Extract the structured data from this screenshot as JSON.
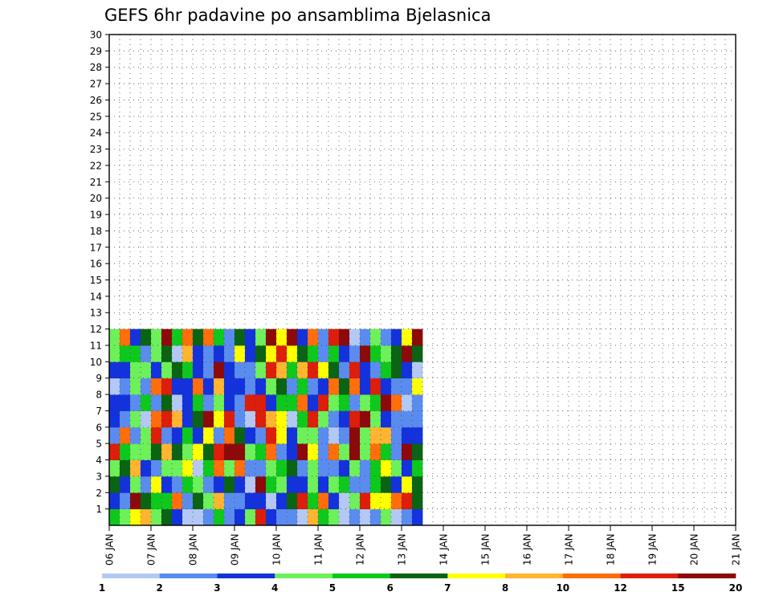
{
  "chart_data": {
    "type": "heatmap",
    "title": "GEFS 6hr padavine po ansamblima Bjelasnica",
    "xlabel": "",
    "ylabel": "",
    "x_ticks": [
      "06 JAN",
      "07 JAN",
      "08 JAN",
      "09 JAN",
      "10 JAN",
      "11 JAN",
      "12 JAN",
      "13 JAN",
      "14 JAN",
      "15 JAN",
      "16 JAN",
      "17 JAN",
      "18 JAN",
      "19 JAN",
      "20 JAN",
      "21 JAN"
    ],
    "y_ticks": [
      1,
      2,
      3,
      4,
      5,
      6,
      7,
      8,
      9,
      10,
      11,
      12,
      13,
      14,
      15,
      16,
      17,
      18,
      19,
      20,
      21,
      22,
      23,
      24,
      25,
      26,
      27,
      28,
      29,
      30
    ],
    "ylim": [
      0,
      30
    ],
    "time_steps_per_day": 4,
    "grid": "dotted",
    "colorbar": {
      "position": "bottom",
      "labels": [
        "1",
        "2",
        "3",
        "4",
        "5",
        "6",
        "7",
        "8",
        "10",
        "12",
        "15",
        "20"
      ],
      "colors": [
        "#b4c8f5",
        "#5a8cf0",
        "#1432dc",
        "#6ef05a",
        "#0fc81e",
        "#0a6414",
        "#ffff00",
        "#ffb432",
        "#ff6e0a",
        "#dc1e0a",
        "#8c0a0a"
      ]
    },
    "cells": [
      [
        0,
        0,
        4
      ],
      [
        1,
        0,
        3
      ],
      [
        2,
        0,
        6
      ],
      [
        3,
        0,
        7
      ],
      [
        4,
        0,
        3
      ],
      [
        5,
        0,
        5
      ],
      [
        6,
        0,
        2
      ],
      [
        7,
        0,
        0
      ],
      [
        8,
        0,
        0
      ],
      [
        9,
        0,
        1
      ],
      [
        10,
        0,
        4
      ],
      [
        11,
        0,
        1
      ],
      [
        12,
        0,
        2
      ],
      [
        13,
        0,
        3
      ],
      [
        14,
        0,
        9
      ],
      [
        15,
        0,
        2
      ],
      [
        16,
        0,
        1
      ],
      [
        17,
        0,
        1
      ],
      [
        18,
        0,
        0
      ],
      [
        19,
        0,
        7
      ],
      [
        20,
        0,
        4
      ],
      [
        21,
        0,
        3
      ],
      [
        22,
        0,
        0
      ],
      [
        23,
        0,
        1
      ],
      [
        24,
        0,
        0
      ],
      [
        25,
        0,
        1
      ],
      [
        26,
        0,
        3
      ],
      [
        27,
        0,
        0
      ],
      [
        28,
        0,
        1
      ],
      [
        29,
        0,
        2
      ],
      [
        0,
        1,
        2
      ],
      [
        1,
        1,
        1
      ],
      [
        2,
        1,
        10
      ],
      [
        3,
        1,
        5
      ],
      [
        4,
        1,
        4
      ],
      [
        5,
        1,
        4
      ],
      [
        6,
        1,
        8
      ],
      [
        7,
        1,
        1
      ],
      [
        8,
        1,
        5
      ],
      [
        9,
        1,
        3
      ],
      [
        10,
        1,
        7
      ],
      [
        11,
        1,
        1
      ],
      [
        12,
        1,
        1
      ],
      [
        13,
        1,
        2
      ],
      [
        14,
        1,
        2
      ],
      [
        15,
        1,
        0
      ],
      [
        16,
        1,
        2
      ],
      [
        17,
        1,
        5
      ],
      [
        18,
        1,
        9
      ],
      [
        19,
        1,
        4
      ],
      [
        20,
        1,
        8
      ],
      [
        21,
        1,
        2
      ],
      [
        22,
        1,
        0
      ],
      [
        23,
        1,
        3
      ],
      [
        24,
        1,
        9
      ],
      [
        25,
        1,
        6
      ],
      [
        26,
        1,
        6
      ],
      [
        27,
        1,
        8
      ],
      [
        28,
        1,
        9
      ],
      [
        29,
        1,
        5
      ],
      [
        0,
        2,
        5
      ],
      [
        1,
        2,
        2
      ],
      [
        2,
        2,
        3
      ],
      [
        3,
        2,
        1
      ],
      [
        4,
        2,
        6
      ],
      [
        5,
        2,
        2
      ],
      [
        6,
        2,
        1
      ],
      [
        7,
        2,
        4
      ],
      [
        8,
        2,
        3
      ],
      [
        9,
        2,
        1
      ],
      [
        10,
        2,
        2
      ],
      [
        11,
        2,
        5
      ],
      [
        12,
        2,
        2
      ],
      [
        13,
        2,
        0
      ],
      [
        14,
        2,
        10
      ],
      [
        15,
        2,
        4
      ],
      [
        16,
        2,
        3
      ],
      [
        17,
        2,
        2
      ],
      [
        18,
        2,
        2
      ],
      [
        19,
        2,
        3
      ],
      [
        20,
        2,
        2
      ],
      [
        21,
        2,
        3
      ],
      [
        22,
        2,
        4
      ],
      [
        23,
        2,
        1
      ],
      [
        24,
        2,
        1
      ],
      [
        25,
        2,
        4
      ],
      [
        26,
        2,
        5
      ],
      [
        27,
        2,
        2
      ],
      [
        28,
        2,
        6
      ],
      [
        29,
        2,
        5
      ],
      [
        0,
        3,
        3
      ],
      [
        1,
        3,
        5
      ],
      [
        2,
        3,
        7
      ],
      [
        3,
        3,
        2
      ],
      [
        4,
        3,
        1
      ],
      [
        5,
        3,
        3
      ],
      [
        6,
        3,
        3
      ],
      [
        7,
        3,
        6
      ],
      [
        8,
        3,
        0
      ],
      [
        9,
        3,
        4
      ],
      [
        10,
        3,
        8
      ],
      [
        11,
        3,
        3
      ],
      [
        12,
        3,
        8
      ],
      [
        13,
        3,
        1
      ],
      [
        14,
        3,
        1
      ],
      [
        15,
        3,
        3
      ],
      [
        16,
        3,
        4
      ],
      [
        17,
        3,
        5
      ],
      [
        18,
        3,
        1
      ],
      [
        19,
        3,
        3
      ],
      [
        20,
        3,
        1
      ],
      [
        21,
        3,
        1
      ],
      [
        22,
        3,
        2
      ],
      [
        23,
        3,
        3
      ],
      [
        24,
        3,
        1
      ],
      [
        25,
        3,
        4
      ],
      [
        26,
        3,
        6
      ],
      [
        27,
        3,
        3
      ],
      [
        28,
        3,
        2
      ],
      [
        29,
        3,
        4
      ],
      [
        0,
        4,
        9
      ],
      [
        1,
        4,
        4
      ],
      [
        2,
        4,
        3
      ],
      [
        3,
        4,
        3
      ],
      [
        4,
        4,
        5
      ],
      [
        5,
        4,
        7
      ],
      [
        6,
        4,
        5
      ],
      [
        7,
        4,
        3
      ],
      [
        8,
        4,
        6
      ],
      [
        9,
        4,
        5
      ],
      [
        10,
        4,
        9
      ],
      [
        11,
        4,
        10
      ],
      [
        12,
        4,
        10
      ],
      [
        13,
        4,
        3
      ],
      [
        14,
        4,
        4
      ],
      [
        15,
        4,
        8
      ],
      [
        16,
        4,
        1
      ],
      [
        17,
        4,
        2
      ],
      [
        18,
        4,
        10
      ],
      [
        19,
        4,
        6
      ],
      [
        20,
        4,
        1
      ],
      [
        21,
        4,
        8
      ],
      [
        22,
        4,
        3
      ],
      [
        23,
        4,
        10
      ],
      [
        24,
        4,
        3
      ],
      [
        25,
        4,
        8
      ],
      [
        26,
        4,
        4
      ],
      [
        27,
        4,
        1
      ],
      [
        28,
        4,
        10
      ],
      [
        29,
        4,
        5
      ],
      [
        0,
        5,
        1
      ],
      [
        1,
        5,
        8
      ],
      [
        2,
        5,
        1
      ],
      [
        3,
        5,
        3
      ],
      [
        4,
        5,
        9
      ],
      [
        5,
        5,
        1
      ],
      [
        6,
        5,
        2
      ],
      [
        7,
        5,
        4
      ],
      [
        8,
        5,
        2
      ],
      [
        9,
        5,
        6
      ],
      [
        10,
        5,
        1
      ],
      [
        11,
        5,
        8
      ],
      [
        12,
        5,
        5
      ],
      [
        13,
        5,
        2
      ],
      [
        14,
        5,
        1
      ],
      [
        15,
        5,
        9
      ],
      [
        16,
        5,
        6
      ],
      [
        17,
        5,
        2
      ],
      [
        18,
        5,
        3
      ],
      [
        19,
        5,
        3
      ],
      [
        20,
        5,
        1
      ],
      [
        21,
        5,
        0
      ],
      [
        22,
        5,
        1
      ],
      [
        23,
        5,
        10
      ],
      [
        24,
        5,
        3
      ],
      [
        25,
        5,
        7
      ],
      [
        26,
        5,
        7
      ],
      [
        27,
        5,
        1
      ],
      [
        28,
        5,
        2
      ],
      [
        29,
        5,
        2
      ],
      [
        0,
        6,
        2
      ],
      [
        1,
        6,
        1
      ],
      [
        2,
        6,
        3
      ],
      [
        3,
        6,
        0
      ],
      [
        4,
        6,
        8
      ],
      [
        5,
        6,
        9
      ],
      [
        6,
        6,
        7
      ],
      [
        7,
        6,
        2
      ],
      [
        8,
        6,
        5
      ],
      [
        9,
        6,
        10
      ],
      [
        10,
        6,
        6
      ],
      [
        11,
        6,
        9
      ],
      [
        12,
        6,
        1
      ],
      [
        13,
        6,
        0
      ],
      [
        14,
        6,
        9
      ],
      [
        15,
        6,
        7
      ],
      [
        16,
        6,
        6
      ],
      [
        17,
        6,
        0
      ],
      [
        18,
        6,
        4
      ],
      [
        19,
        6,
        9
      ],
      [
        20,
        6,
        3
      ],
      [
        21,
        6,
        1
      ],
      [
        22,
        6,
        2
      ],
      [
        23,
        6,
        9
      ],
      [
        24,
        6,
        10
      ],
      [
        25,
        6,
        3
      ],
      [
        26,
        6,
        2
      ],
      [
        27,
        6,
        1
      ],
      [
        28,
        6,
        1
      ],
      [
        29,
        6,
        1
      ],
      [
        0,
        7,
        2
      ],
      [
        1,
        7,
        2
      ],
      [
        2,
        7,
        1
      ],
      [
        3,
        7,
        4
      ],
      [
        4,
        7,
        1
      ],
      [
        5,
        7,
        5
      ],
      [
        6,
        7,
        0
      ],
      [
        7,
        7,
        2
      ],
      [
        8,
        7,
        4
      ],
      [
        9,
        7,
        1
      ],
      [
        10,
        7,
        3
      ],
      [
        11,
        7,
        2
      ],
      [
        12,
        7,
        1
      ],
      [
        13,
        7,
        9
      ],
      [
        14,
        7,
        9
      ],
      [
        15,
        7,
        2
      ],
      [
        16,
        7,
        4
      ],
      [
        17,
        7,
        4
      ],
      [
        18,
        7,
        8
      ],
      [
        19,
        7,
        2
      ],
      [
        20,
        7,
        9
      ],
      [
        21,
        7,
        3
      ],
      [
        22,
        7,
        4
      ],
      [
        23,
        7,
        1
      ],
      [
        24,
        7,
        3
      ],
      [
        25,
        7,
        4
      ],
      [
        26,
        7,
        10
      ],
      [
        27,
        7,
        8
      ],
      [
        28,
        7,
        0
      ],
      [
        29,
        7,
        1
      ],
      [
        0,
        8,
        0
      ],
      [
        1,
        8,
        1
      ],
      [
        2,
        8,
        3
      ],
      [
        3,
        8,
        1
      ],
      [
        4,
        8,
        8
      ],
      [
        5,
        8,
        9
      ],
      [
        6,
        8,
        2
      ],
      [
        7,
        8,
        2
      ],
      [
        8,
        8,
        8
      ],
      [
        9,
        8,
        2
      ],
      [
        10,
        8,
        7
      ],
      [
        11,
        8,
        2
      ],
      [
        12,
        8,
        2
      ],
      [
        13,
        8,
        1
      ],
      [
        14,
        8,
        2
      ],
      [
        15,
        8,
        3
      ],
      [
        16,
        8,
        5
      ],
      [
        17,
        8,
        1
      ],
      [
        18,
        8,
        4
      ],
      [
        19,
        8,
        1
      ],
      [
        20,
        8,
        2
      ],
      [
        21,
        8,
        8
      ],
      [
        22,
        8,
        5
      ],
      [
        23,
        8,
        8
      ],
      [
        24,
        8,
        2
      ],
      [
        25,
        8,
        9
      ],
      [
        26,
        8,
        2
      ],
      [
        27,
        8,
        1
      ],
      [
        28,
        8,
        1
      ],
      [
        29,
        8,
        6
      ],
      [
        0,
        9,
        2
      ],
      [
        1,
        9,
        2
      ],
      [
        2,
        9,
        3
      ],
      [
        3,
        9,
        3
      ],
      [
        4,
        9,
        2
      ],
      [
        5,
        9,
        3
      ],
      [
        6,
        9,
        5
      ],
      [
        7,
        9,
        4
      ],
      [
        8,
        9,
        2
      ],
      [
        9,
        9,
        1
      ],
      [
        10,
        9,
        10
      ],
      [
        11,
        9,
        2
      ],
      [
        12,
        9,
        1
      ],
      [
        13,
        9,
        1
      ],
      [
        14,
        9,
        3
      ],
      [
        15,
        9,
        9
      ],
      [
        16,
        9,
        7
      ],
      [
        17,
        9,
        4
      ],
      [
        18,
        9,
        7
      ],
      [
        19,
        9,
        9
      ],
      [
        20,
        9,
        6
      ],
      [
        21,
        9,
        5
      ],
      [
        22,
        9,
        1
      ],
      [
        23,
        9,
        9
      ],
      [
        24,
        9,
        2
      ],
      [
        25,
        9,
        1
      ],
      [
        26,
        9,
        4
      ],
      [
        27,
        9,
        5
      ],
      [
        28,
        9,
        2
      ],
      [
        29,
        9,
        0
      ],
      [
        0,
        10,
        3
      ],
      [
        1,
        10,
        4
      ],
      [
        2,
        10,
        4
      ],
      [
        3,
        10,
        1
      ],
      [
        4,
        10,
        3
      ],
      [
        5,
        10,
        5
      ],
      [
        6,
        10,
        0
      ],
      [
        7,
        10,
        7
      ],
      [
        8,
        10,
        2
      ],
      [
        9,
        10,
        1
      ],
      [
        10,
        10,
        2
      ],
      [
        11,
        10,
        1
      ],
      [
        12,
        10,
        6
      ],
      [
        13,
        10,
        2
      ],
      [
        14,
        10,
        5
      ],
      [
        15,
        10,
        6
      ],
      [
        16,
        10,
        9
      ],
      [
        17,
        10,
        6
      ],
      [
        18,
        10,
        5
      ],
      [
        19,
        10,
        4
      ],
      [
        20,
        10,
        1
      ],
      [
        21,
        10,
        4
      ],
      [
        22,
        10,
        2
      ],
      [
        23,
        10,
        1
      ],
      [
        24,
        10,
        10
      ],
      [
        25,
        10,
        4
      ],
      [
        26,
        10,
        3
      ],
      [
        27,
        10,
        5
      ],
      [
        28,
        10,
        10
      ],
      [
        29,
        10,
        5
      ],
      [
        0,
        11,
        3
      ],
      [
        1,
        11,
        8
      ],
      [
        2,
        11,
        2
      ],
      [
        3,
        11,
        5
      ],
      [
        4,
        11,
        3
      ],
      [
        5,
        11,
        10
      ],
      [
        6,
        11,
        4
      ],
      [
        7,
        11,
        8
      ],
      [
        8,
        11,
        5
      ],
      [
        9,
        11,
        8
      ],
      [
        10,
        11,
        4
      ],
      [
        11,
        11,
        1
      ],
      [
        12,
        11,
        5
      ],
      [
        13,
        11,
        2
      ],
      [
        14,
        11,
        3
      ],
      [
        15,
        11,
        10
      ],
      [
        16,
        11,
        6
      ],
      [
        17,
        11,
        10
      ],
      [
        18,
        11,
        2
      ],
      [
        19,
        11,
        8
      ],
      [
        20,
        11,
        1
      ],
      [
        21,
        11,
        9
      ],
      [
        22,
        11,
        10
      ],
      [
        23,
        11,
        0
      ],
      [
        24,
        11,
        1
      ],
      [
        25,
        11,
        3
      ],
      [
        26,
        11,
        1
      ],
      [
        27,
        11,
        2
      ],
      [
        28,
        11,
        6
      ],
      [
        29,
        11,
        10
      ]
    ]
  }
}
